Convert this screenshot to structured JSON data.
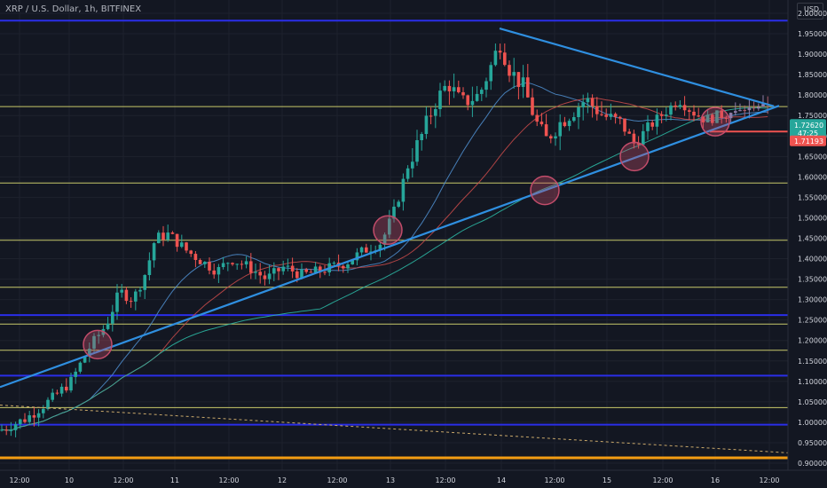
{
  "header": {
    "symbol_line": "XRP / U.S. Dollar, 1h, BITFINEX"
  },
  "price_axis": {
    "currency": "USD",
    "ticks": [
      "2.00000",
      "1.95000",
      "1.90000",
      "1.85000",
      "1.80000",
      "1.75000",
      "1.70000",
      "1.65000",
      "1.60000",
      "1.55000",
      "1.50000",
      "1.45000",
      "1.40000",
      "1.35000",
      "1.30000",
      "1.25000",
      "1.20000",
      "1.15000",
      "1.10000",
      "1.05000",
      "1.00000",
      "0.95000",
      "0.90000"
    ]
  },
  "time_axis": {
    "ticks": [
      "12:00",
      "10",
      "12:00",
      "11",
      "12:00",
      "12",
      "12:00",
      "13",
      "12:00",
      "14",
      "12:00",
      "15",
      "12:00",
      "16",
      "12:00"
    ]
  },
  "badges": {
    "last": {
      "price": "1.72620",
      "countdown": "47:25",
      "color": "#26a69a"
    },
    "red": {
      "price": "1.71193",
      "color": "#ef5350"
    }
  },
  "colors": {
    "background": "#131722",
    "up": "#26a69a",
    "down": "#ef5350",
    "trendline": "#2f8fe0",
    "support_blue": "#2a2ee8",
    "yellow": "#c8c86a",
    "orange": "#f39c12",
    "ma_fast": "#4d8ac8",
    "ma_red": "#c04848",
    "ma_teal": "#2bb3a0",
    "circle": "#c24c6a"
  },
  "chart_data": {
    "type": "candlestick",
    "title": "XRP / U.S. Dollar, 1h, BITFINEX",
    "x_range": [
      0,
      870
    ],
    "ylim": [
      0.895,
      2.02
    ],
    "horizontal_levels": [
      {
        "price": 1.982,
        "style": "blue"
      },
      {
        "price": 1.772,
        "style": "yellow"
      },
      {
        "price": 1.585,
        "style": "yellow"
      },
      {
        "price": 1.445,
        "style": "yellow"
      },
      {
        "price": 1.33,
        "style": "yellow"
      },
      {
        "price": 1.262,
        "style": "blue"
      },
      {
        "price": 1.24,
        "style": "yellow"
      },
      {
        "price": 1.176,
        "style": "yellow"
      },
      {
        "price": 1.114,
        "style": "blue"
      },
      {
        "price": 1.036,
        "style": "yellow"
      },
      {
        "price": 0.994,
        "style": "blue"
      },
      {
        "price": 0.913,
        "style": "orange"
      }
    ],
    "trendlines": [
      {
        "x1": 0,
        "y1": 1.086,
        "x2": 878,
        "y2": 1.774,
        "style": "blue"
      },
      {
        "x1": 563,
        "y1": 1.963,
        "x2": 872,
        "y2": 1.773,
        "style": "blue"
      },
      {
        "x1": 0,
        "y1": 1.042,
        "x2": 890,
        "y2": 0.925,
        "style": "dotted"
      }
    ],
    "highlight_circles": [
      {
        "x": 110,
        "y": 1.19
      },
      {
        "x": 437,
        "y": 1.47
      },
      {
        "x": 614,
        "y": 1.567
      },
      {
        "x": 715,
        "y": 1.65
      },
      {
        "x": 806,
        "y": 1.735
      }
    ],
    "path_points": [
      [
        0,
        0.98
      ],
      [
        30,
        1.01
      ],
      [
        60,
        1.06
      ],
      [
        80,
        1.1
      ],
      [
        100,
        1.18
      ],
      [
        120,
        1.24
      ],
      [
        135,
        1.32
      ],
      [
        150,
        1.3
      ],
      [
        165,
        1.37
      ],
      [
        175,
        1.45
      ],
      [
        190,
        1.46
      ],
      [
        210,
        1.42
      ],
      [
        230,
        1.39
      ],
      [
        245,
        1.37
      ],
      [
        260,
        1.4
      ],
      [
        280,
        1.38
      ],
      [
        300,
        1.35
      ],
      [
        320,
        1.38
      ],
      [
        340,
        1.36
      ],
      [
        360,
        1.37
      ],
      [
        390,
        1.39
      ],
      [
        410,
        1.42
      ],
      [
        430,
        1.44
      ],
      [
        445,
        1.52
      ],
      [
        460,
        1.63
      ],
      [
        475,
        1.7
      ],
      [
        490,
        1.78
      ],
      [
        505,
        1.83
      ],
      [
        520,
        1.78
      ],
      [
        540,
        1.8
      ],
      [
        555,
        1.88
      ],
      [
        563,
        1.93
      ],
      [
        575,
        1.86
      ],
      [
        590,
        1.82
      ],
      [
        605,
        1.73
      ],
      [
        615,
        1.69
      ],
      [
        630,
        1.73
      ],
      [
        645,
        1.76
      ],
      [
        660,
        1.79
      ],
      [
        680,
        1.75
      ],
      [
        700,
        1.73
      ],
      [
        715,
        1.68
      ],
      [
        730,
        1.72
      ],
      [
        750,
        1.76
      ],
      [
        765,
        1.79
      ],
      [
        780,
        1.76
      ],
      [
        795,
        1.74
      ],
      [
        810,
        1.75
      ],
      [
        830,
        1.76
      ],
      [
        850,
        1.77
      ],
      [
        870,
        1.78
      ]
    ]
  }
}
